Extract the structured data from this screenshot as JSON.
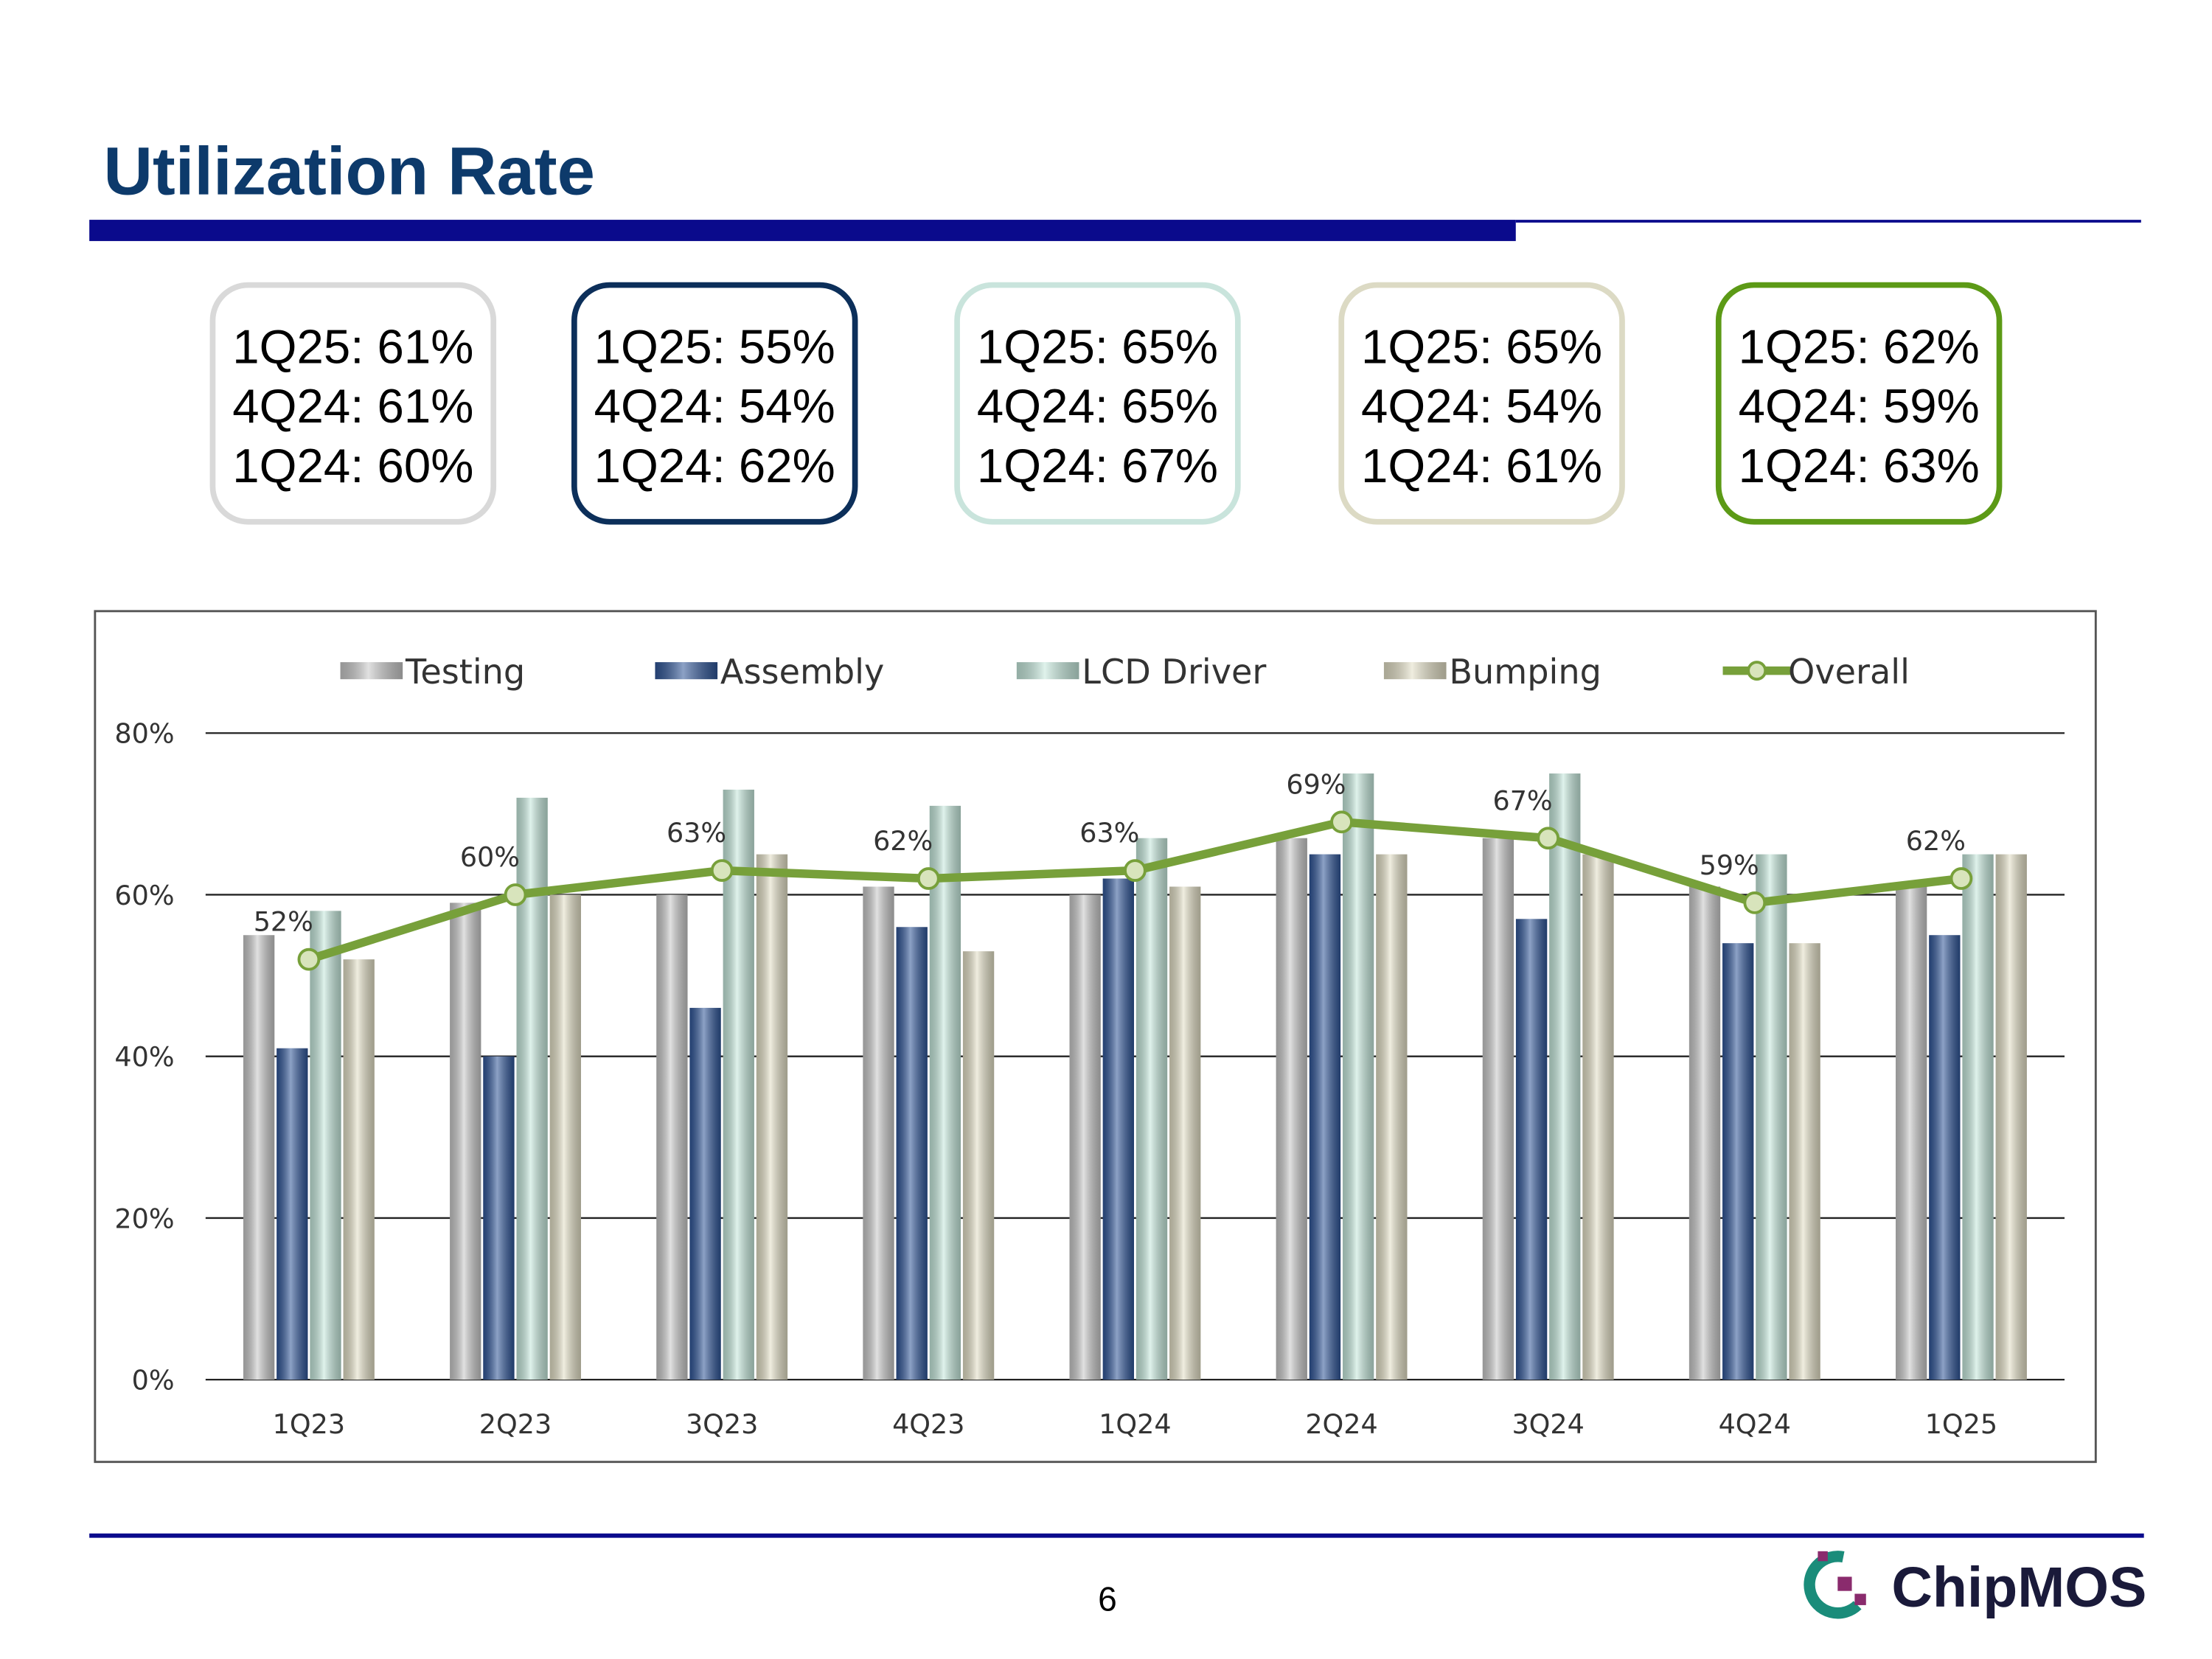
{
  "header": {
    "title": "Utilization Rate"
  },
  "boxes": [
    {
      "color": "#d9d9d9",
      "lines": [
        "1Q25: 61%",
        "4Q24: 61%",
        "1Q24: 60%"
      ]
    },
    {
      "color": "#0c2f5a",
      "lines": [
        "1Q25: 55%",
        "4Q24: 54%",
        "1Q24: 62%"
      ]
    },
    {
      "color": "#c9e4dc",
      "lines": [
        "1Q25: 65%",
        "4Q24: 65%",
        "1Q24: 67%"
      ]
    },
    {
      "color": "#dcdac4",
      "lines": [
        "1Q25: 65%",
        "4Q24: 54%",
        "1Q24: 61%"
      ]
    },
    {
      "color": "#5c9a16",
      "lines": [
        "1Q25: 62%",
        "4Q24: 59%",
        "1Q24: 63%"
      ]
    }
  ],
  "chart_data": {
    "type": "bar",
    "categories": [
      "1Q23",
      "2Q23",
      "3Q23",
      "4Q23",
      "1Q24",
      "2Q24",
      "3Q24",
      "4Q24",
      "1Q25"
    ],
    "series": [
      {
        "name": "Testing",
        "color": "#c8c8c8",
        "values": [
          55,
          59,
          60,
          61,
          60,
          67,
          67,
          61,
          61
        ]
      },
      {
        "name": "Assembly",
        "color": "#2f5597",
        "values": [
          41,
          40,
          46,
          56,
          62,
          65,
          57,
          54,
          55
        ]
      },
      {
        "name": "LCD Driver",
        "color": "#c5e8dc",
        "values": [
          58,
          72,
          73,
          71,
          67,
          75,
          75,
          65,
          65
        ]
      },
      {
        "name": "Bumping",
        "color": "#e3dfc6",
        "values": [
          52,
          60,
          65,
          53,
          61,
          65,
          65,
          54,
          65
        ]
      },
      {
        "name": "Overall",
        "type": "line",
        "color": "#77a03a",
        "values": [
          52,
          60,
          63,
          62,
          63,
          69,
          67,
          59,
          62
        ],
        "value_labels": [
          "52%",
          "60%",
          "63%",
          "62%",
          "63%",
          "69%",
          "67%",
          "59%",
          "62%"
        ]
      }
    ],
    "ylim": [
      0,
      80
    ],
    "yticks": [
      {
        "value": 0,
        "label": "0%"
      },
      {
        "value": 20,
        "label": "20%"
      },
      {
        "value": 40,
        "label": "40%"
      },
      {
        "value": 60,
        "label": "60%"
      },
      {
        "value": 80,
        "label": "80%"
      }
    ],
    "grid": true,
    "legend": "top"
  },
  "footer": {
    "page": "6",
    "logo": "ChipMOS"
  }
}
